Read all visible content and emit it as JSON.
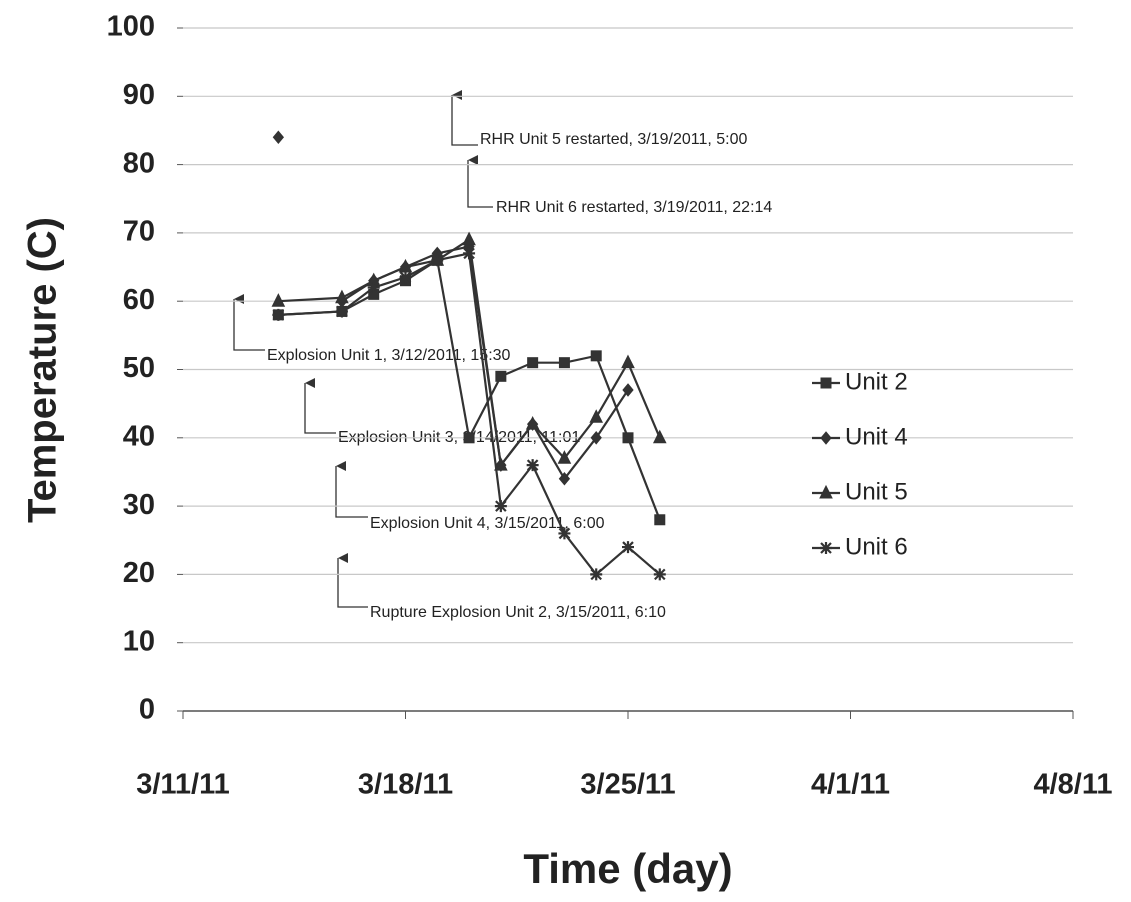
{
  "chart_data": {
    "type": "line",
    "x_label": "Time (day)",
    "y_label": "Temperature (C)",
    "xlim": [
      "2011-03-11",
      "2011-04-08"
    ],
    "xticks": [
      {
        "value": "2011-03-11",
        "label": "3/11/11"
      },
      {
        "value": "2011-03-18",
        "label": "3/18/11"
      },
      {
        "value": "2011-03-25",
        "label": "3/25/11"
      },
      {
        "value": "2011-04-01",
        "label": "4/1/11"
      },
      {
        "value": "2011-04-08",
        "label": "4/8/11"
      }
    ],
    "ylim": [
      0,
      100
    ],
    "yticks": [
      0,
      10,
      20,
      30,
      40,
      50,
      60,
      70,
      80,
      90,
      100
    ],
    "grid": true,
    "legend": "right",
    "series": [
      {
        "name": "Unit 2",
        "color": "#333333",
        "marker": "square",
        "x": [
          "2011-03-14",
          "2011-03-16",
          "2011-03-17",
          "2011-03-18",
          "2011-03-19",
          "2011-03-20",
          "2011-03-21",
          "2011-03-22",
          "2011-03-23",
          "2011-03-24",
          "2011-03-25",
          "2011-03-26"
        ],
        "values": [
          58,
          58.5,
          61,
          63,
          66,
          40,
          49,
          51,
          51,
          52,
          40,
          28
        ]
      },
      {
        "name": "Unit 4",
        "color": "#333333",
        "marker": "diamond",
        "x": [
          "2011-03-14",
          "2011-03-15",
          "2011-03-16",
          "2011-03-17",
          "2011-03-18",
          "2011-03-19",
          "2011-03-20",
          "2011-03-21",
          "2011-03-22",
          "2011-03-23",
          "2011-03-24",
          "2011-03-25"
        ],
        "values": [
          84,
          null,
          60,
          63,
          65,
          67,
          68,
          36,
          42,
          34,
          40,
          47
        ]
      },
      {
        "name": "Unit 5",
        "color": "#333333",
        "marker": "triangle",
        "x": [
          "2011-03-14",
          "2011-03-16",
          "2011-03-17",
          "2011-03-18",
          "2011-03-19",
          "2011-03-20",
          "2011-03-21",
          "2011-03-22",
          "2011-03-23",
          "2011-03-24",
          "2011-03-25",
          "2011-03-26"
        ],
        "values": [
          60,
          60.5,
          63,
          65,
          66,
          69,
          36,
          42,
          37,
          43,
          51,
          40
        ]
      },
      {
        "name": "Unit 6",
        "color": "#333333",
        "marker": "star",
        "x": [
          "2011-03-14",
          "2011-03-16",
          "2011-03-17",
          "2011-03-18",
          "2011-03-19",
          "2011-03-20",
          "2011-03-21",
          "2011-03-22",
          "2011-03-23",
          "2011-03-24",
          "2011-03-25",
          "2011-03-26"
        ],
        "values": [
          58,
          58.5,
          62,
          63.5,
          66,
          67,
          30,
          36,
          26,
          20,
          24,
          20
        ]
      }
    ],
    "annotations": [
      "RHR Unit  5 restarted,  3/19/2011, 5:00",
      "RHR Unit  6 restarted,  3/19/2011, 22:14",
      "Explosion Unit 1, 3/12/2011, 15:30",
      "Explosion Unit 3, 3/14/2011, 11:01",
      "Explosion Unit 4, 3/15/2011, 6:00",
      "Rupture Explosion Unit  2, 3/15/2011, 6:10"
    ]
  }
}
